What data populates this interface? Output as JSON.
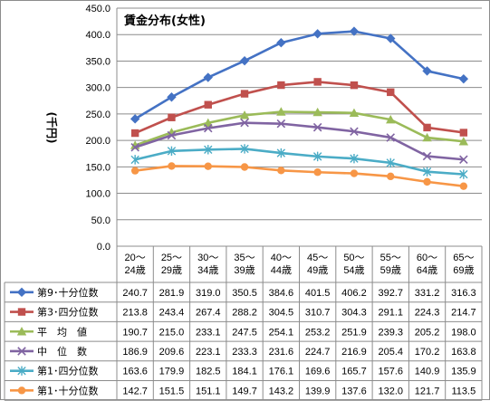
{
  "chart_data": {
    "type": "line",
    "title": "賃金分布(女性)",
    "ylabel": "(千円)",
    "xlabel": "",
    "ylim": [
      0,
      450
    ],
    "yticks": [
      "0.0",
      "50.0",
      "100.0",
      "150.0",
      "200.0",
      "250.0",
      "300.0",
      "350.0",
      "400.0",
      "450.0"
    ],
    "grid": true,
    "legend": "data-table-below",
    "categories": [
      [
        "20～",
        "24歳"
      ],
      [
        "25～",
        "29歳"
      ],
      [
        "30～",
        "34歳"
      ],
      [
        "35～",
        "39歳"
      ],
      [
        "40～",
        "44歳"
      ],
      [
        "45～",
        "49歳"
      ],
      [
        "50～",
        "54歳"
      ],
      [
        "55～",
        "59歳"
      ],
      [
        "60～",
        "64歳"
      ],
      [
        "65～",
        "69歳"
      ]
    ],
    "series": [
      {
        "name": "第9･十分位数",
        "color": "#4472c4",
        "marker": "diamond",
        "values": [
          240.7,
          281.9,
          319.0,
          350.5,
          384.6,
          401.5,
          406.2,
          392.7,
          331.2,
          316.3
        ],
        "labels": [
          "240.7",
          "281.9",
          "319.0",
          "350.5",
          "384.6",
          "401.5",
          "406.2",
          "392.7",
          "331.2",
          "316.3"
        ]
      },
      {
        "name": "第3･四分位数",
        "color": "#c0504d",
        "marker": "square",
        "values": [
          213.8,
          243.4,
          267.4,
          288.2,
          304.5,
          310.7,
          304.3,
          291.1,
          224.3,
          214.7
        ],
        "labels": [
          "213.8",
          "243.4",
          "267.4",
          "288.2",
          "304.5",
          "310.7",
          "304.3",
          "291.1",
          "224.3",
          "214.7"
        ]
      },
      {
        "name": "平　均　値",
        "color": "#9bbb59",
        "marker": "triangle",
        "values": [
          190.7,
          215.0,
          233.1,
          247.5,
          254.1,
          253.2,
          251.9,
          239.3,
          205.2,
          198.0
        ],
        "labels": [
          "190.7",
          "215.0",
          "233.1",
          "247.5",
          "254.1",
          "253.2",
          "251.9",
          "239.3",
          "205.2",
          "198.0"
        ]
      },
      {
        "name": "中　位　数",
        "color": "#8064a2",
        "marker": "x",
        "values": [
          186.9,
          209.6,
          223.1,
          233.3,
          231.6,
          224.7,
          216.9,
          205.4,
          170.2,
          163.8
        ],
        "labels": [
          "186.9",
          "209.6",
          "223.1",
          "233.3",
          "231.6",
          "224.7",
          "216.9",
          "205.4",
          "170.2",
          "163.8"
        ]
      },
      {
        "name": "第1･四分位数",
        "color": "#4bacc6",
        "marker": "star",
        "values": [
          163.6,
          179.9,
          182.5,
          184.1,
          176.1,
          169.6,
          165.7,
          157.6,
          140.9,
          135.9
        ],
        "labels": [
          "163.6",
          "179.9",
          "182.5",
          "184.1",
          "176.1",
          "169.6",
          "165.7",
          "157.6",
          "140.9",
          "135.9"
        ]
      },
      {
        "name": "第1･十分位数",
        "color": "#f79646",
        "marker": "circle",
        "values": [
          142.7,
          151.5,
          151.1,
          149.7,
          143.2,
          139.9,
          137.6,
          132.0,
          121.7,
          113.5
        ],
        "labels": [
          "142.7",
          "151.5",
          "151.1",
          "149.7",
          "143.2",
          "139.9",
          "137.6",
          "132.0",
          "121.7",
          "113.5"
        ]
      }
    ]
  }
}
